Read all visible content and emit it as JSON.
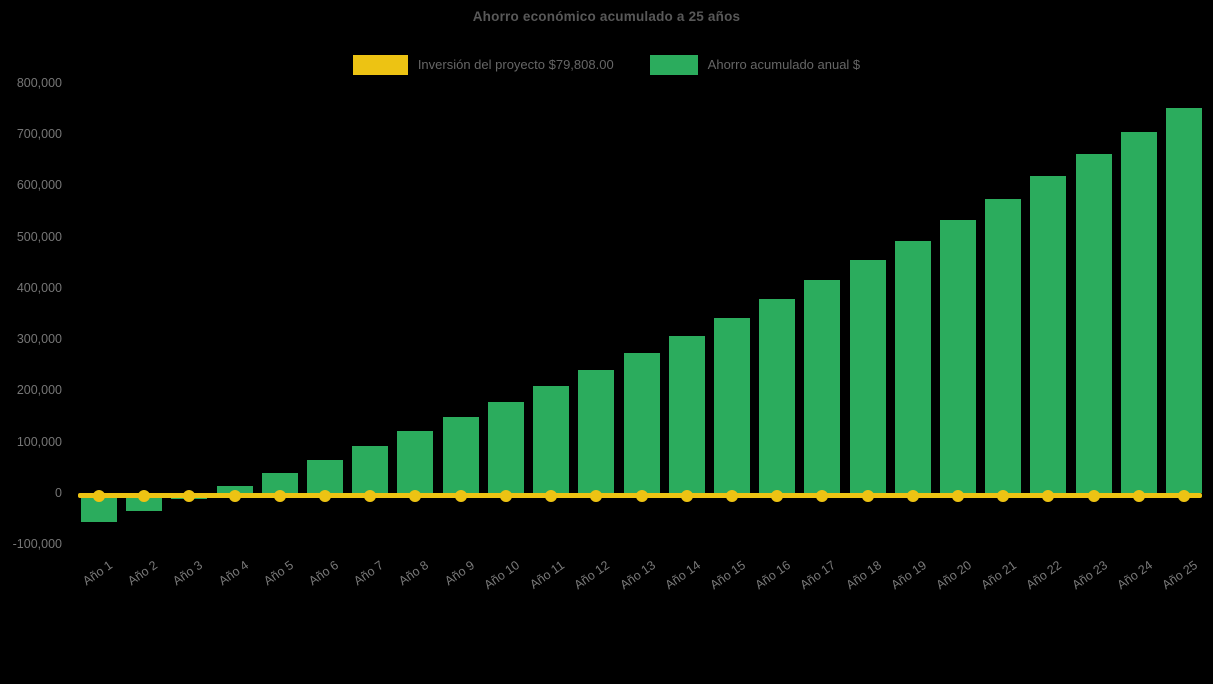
{
  "title": "Ahorro económico acumulado a 25 años",
  "legend": [
    {
      "label": "Inversión del proyecto $79,808.00",
      "color": "#EDC313"
    },
    {
      "label": "Ahorro acumulado anual $",
      "color": "#2BAC5D"
    }
  ],
  "colors": {
    "background": "#000000",
    "bar_green": "#2BAC5D",
    "line_yellow": "#EDC313",
    "title_text": "#585858",
    "legend_text": "#666666",
    "axis_text": "#767676"
  },
  "chart_data": {
    "type": "bar",
    "title": "Ahorro económico acumulado a 25 años",
    "categories": [
      "Año 1",
      "Año 2",
      "Año 3",
      "Año 4",
      "Año 5",
      "Año 6",
      "Año 7",
      "Año 8",
      "Año 9",
      "Año 10",
      "Año 11",
      "Año 12",
      "Año 13",
      "Año 14",
      "Año 15",
      "Año 16",
      "Año 17",
      "Año 18",
      "Año 19",
      "Año 20",
      "Año 21",
      "Año 22",
      "Año 23",
      "Año 24",
      "Año 25"
    ],
    "series": [
      {
        "name": "Ahorro acumulado anual $",
        "type": "bar",
        "color": "#2BAC5D",
        "values": [
          -57000,
          -35000,
          -12000,
          13000,
          39000,
          65000,
          92000,
          120000,
          149000,
          178000,
          208000,
          239000,
          272000,
          306000,
          342000,
          378000,
          416000,
          454000,
          491000,
          532000,
          574000,
          617000,
          660000,
          704000,
          750000
        ]
      },
      {
        "name": "Inversión del proyecto $79,808.00",
        "type": "line",
        "color": "#EDC313",
        "marker": "circle",
        "values": [
          0,
          0,
          0,
          0,
          0,
          0,
          0,
          0,
          0,
          0,
          0,
          0,
          0,
          0,
          0,
          0,
          0,
          0,
          0,
          0,
          0,
          0,
          0,
          0,
          0
        ]
      }
    ],
    "xlabel": "",
    "ylabel": "",
    "ylim": [
      -100000,
      800000
    ],
    "ytick_values": [
      -100000,
      0,
      100000,
      200000,
      300000,
      400000,
      500000,
      600000,
      700000,
      800000
    ],
    "ytick_labels": [
      "-100,000",
      "0",
      "100,000",
      "200,000",
      "300,000",
      "400,000",
      "500,000",
      "600,000",
      "700,000",
      "800,000"
    ],
    "xtick_rotation": -35,
    "grid": false,
    "legend_position": "top",
    "background": "#000000"
  }
}
